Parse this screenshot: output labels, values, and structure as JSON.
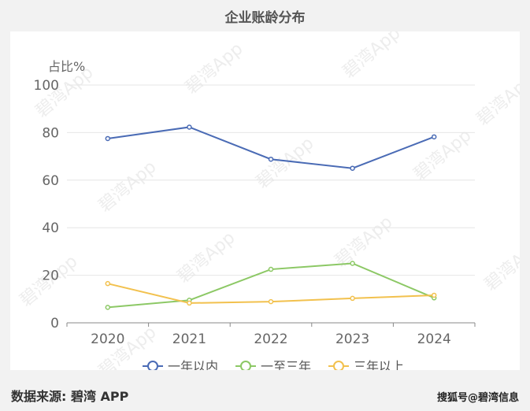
{
  "title": "企业账龄分布",
  "footer": {
    "source": "数据来源: 碧湾 APP",
    "credit": "搜狐号@碧湾信息"
  },
  "watermark": "碧湾App",
  "chart_data": {
    "type": "line",
    "ylabel": "占比%",
    "ylim": [
      0,
      100
    ],
    "yticks": [
      0,
      20,
      40,
      60,
      80,
      100
    ],
    "categories": [
      "2020",
      "2021",
      "2022",
      "2023",
      "2024"
    ],
    "grid": true,
    "legend_position": "bottom",
    "series": [
      {
        "name": "一年以内",
        "color": "#4a6bb5",
        "values": [
          77.5,
          82.3,
          68.8,
          65.0,
          78.2
        ]
      },
      {
        "name": "一至三年",
        "color": "#8cc865",
        "values": [
          6.5,
          9.5,
          22.5,
          25.0,
          10.5
        ]
      },
      {
        "name": "三年以上",
        "color": "#f2c14e",
        "values": [
          16.5,
          8.3,
          8.9,
          10.3,
          11.6
        ]
      }
    ]
  }
}
